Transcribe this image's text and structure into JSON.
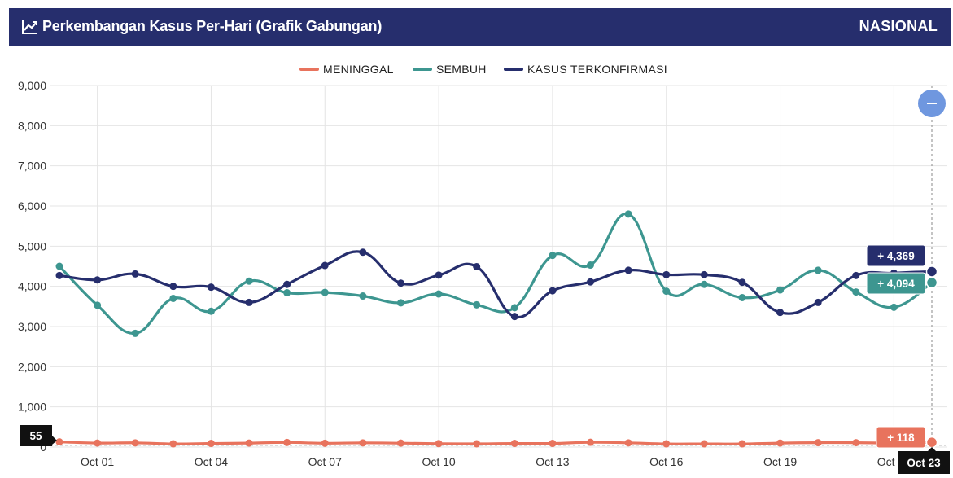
{
  "header": {
    "title": "Perkembangan Kasus Per-Hari (Grafik Gabungan)",
    "title_icon": "line-chart-icon",
    "scope": "NASIONAL",
    "background": "#262e6d"
  },
  "chart_data": {
    "type": "line",
    "x": [
      "Sep 30",
      "Oct 01",
      "Oct 02",
      "Oct 03",
      "Oct 04",
      "Oct 05",
      "Oct 06",
      "Oct 07",
      "Oct 08",
      "Oct 09",
      "Oct 10",
      "Oct 11",
      "Oct 12",
      "Oct 13",
      "Oct 14",
      "Oct 15",
      "Oct 16",
      "Oct 17",
      "Oct 18",
      "Oct 19",
      "Oct 20",
      "Oct 21",
      "Oct 22",
      "Oct 23"
    ],
    "xticks": [
      "Oct 01",
      "Oct 04",
      "Oct 07",
      "Oct 10",
      "Oct 13",
      "Oct 16",
      "Oct 19",
      "Oct 22"
    ],
    "ylim": [
      0,
      9000
    ],
    "yticks": [
      "9,000",
      "8,000",
      "7,000",
      "6,000",
      "5,000",
      "4,000",
      "3,000",
      "2,000",
      "1,000",
      "0"
    ],
    "grid": true,
    "legend_position": "top-center",
    "series": [
      {
        "name": "MENINGGAL",
        "color": "#e8735d",
        "values": [
          128,
          100,
          105,
          80,
          90,
          100,
          115,
          95,
          105,
          98,
          85,
          82,
          90,
          90,
          118,
          105,
          80,
          80,
          80,
          100,
          110,
          110,
          100,
          118
        ]
      },
      {
        "name": "SEMBUH",
        "color": "#3d9690",
        "values": [
          4500,
          3530,
          2830,
          3700,
          3380,
          4130,
          3840,
          3850,
          3760,
          3590,
          3810,
          3540,
          3470,
          4770,
          4530,
          5800,
          3880,
          4050,
          3720,
          3910,
          4400,
          3860,
          3480,
          4094
        ]
      },
      {
        "name": "KASUS TERKONFIRMASI",
        "color": "#262e6d",
        "values": [
          4270,
          4160,
          4310,
          4000,
          3980,
          3600,
          4050,
          4520,
          4850,
          4080,
          4280,
          4490,
          3250,
          3890,
          4110,
          4400,
          4290,
          4290,
          4100,
          3350,
          3600,
          4270,
          4330,
          4369
        ]
      }
    ],
    "hover": {
      "x_label": "Oct 23",
      "y_label": "55",
      "labels": [
        {
          "series": "KASUS TERKONFIRMASI",
          "text": "+ 4,369",
          "color": "#262e6d"
        },
        {
          "series": "SEMBUH",
          "text": "+ 4,094",
          "color": "#3d9690"
        },
        {
          "series": "MENINGGAL",
          "text": "+ 118",
          "color": "#e8735d"
        }
      ]
    },
    "reset_zoom_color": "#6f97df"
  }
}
